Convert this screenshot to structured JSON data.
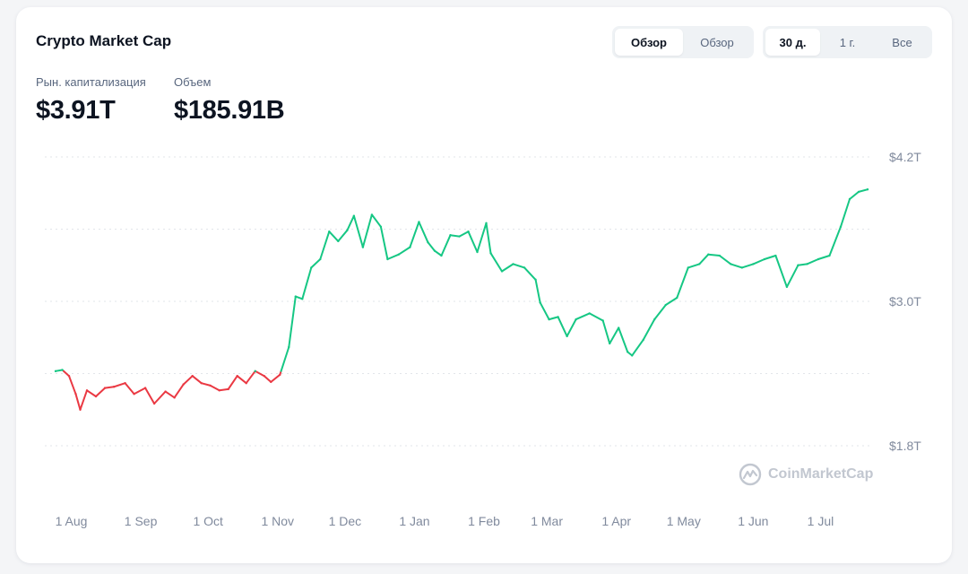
{
  "widget": {
    "title": "Crypto Market Cap",
    "view_buttons": [
      {
        "label": "Обзор",
        "active": true
      },
      {
        "label": "Обзор",
        "active": false
      }
    ],
    "range_buttons": [
      {
        "label": "30 д.",
        "active": true
      },
      {
        "label": "1 г.",
        "active": false
      },
      {
        "label": "Все",
        "active": false
      }
    ],
    "stats": [
      {
        "label": "Рын. капитализация",
        "value": "$3.91T"
      },
      {
        "label": "Объем",
        "value": "$185.91B"
      }
    ],
    "watermark": "CoinMarketCap"
  },
  "colors": {
    "up": "#16c784",
    "down": "#ea3943",
    "grid": "#e2e5ea",
    "tick": "#808a9d"
  },
  "chart_data": {
    "type": "line",
    "title": "",
    "xlabel": "",
    "ylabel": "",
    "ylim": [
      1.8,
      4.2
    ],
    "y_ticks": [
      "$4.2T",
      "$3.0T",
      "$1.8T"
    ],
    "y_tick_values": [
      4.2,
      3.0,
      1.8
    ],
    "x_ticks": [
      "1 Aug",
      "1 Sep",
      "1 Oct",
      "1 Nov",
      "1 Dec",
      "1 Jan",
      "1 Feb",
      "1 Mar",
      "1 Apr",
      "1 May",
      "1 Jun",
      "1 Jul"
    ],
    "baseline": 2.42,
    "grid": true,
    "series": [
      {
        "unit": "T USD",
        "x": [
          "2024-07-25",
          "2024-07-28",
          "2024-07-31",
          "2024-08-03",
          "2024-08-05",
          "2024-08-08",
          "2024-08-12",
          "2024-08-16",
          "2024-08-20",
          "2024-08-25",
          "2024-08-29",
          "2024-09-03",
          "2024-09-07",
          "2024-09-12",
          "2024-09-16",
          "2024-09-20",
          "2024-09-24",
          "2024-09-28",
          "2024-10-02",
          "2024-10-06",
          "2024-10-10",
          "2024-10-14",
          "2024-10-18",
          "2024-10-22",
          "2024-10-26",
          "2024-10-29",
          "2024-11-02",
          "2024-11-06",
          "2024-11-09",
          "2024-11-12",
          "2024-11-16",
          "2024-11-20",
          "2024-11-24",
          "2024-11-28",
          "2024-12-02",
          "2024-12-05",
          "2024-12-09",
          "2024-12-13",
          "2024-12-17",
          "2024-12-20",
          "2024-12-25",
          "2024-12-30",
          "2025-01-03",
          "2025-01-07",
          "2025-01-10",
          "2025-01-13",
          "2025-01-17",
          "2025-01-21",
          "2025-01-25",
          "2025-01-29",
          "2025-02-02",
          "2025-02-04",
          "2025-02-09",
          "2025-02-14",
          "2025-02-19",
          "2025-02-24",
          "2025-02-26",
          "2025-03-02",
          "2025-03-06",
          "2025-03-10",
          "2025-03-14",
          "2025-03-20",
          "2025-03-26",
          "2025-03-29",
          "2025-04-02",
          "2025-04-06",
          "2025-04-08",
          "2025-04-13",
          "2025-04-18",
          "2025-04-23",
          "2025-04-28",
          "2025-05-03",
          "2025-05-08",
          "2025-05-12",
          "2025-05-17",
          "2025-05-22",
          "2025-05-27",
          "2025-06-01",
          "2025-06-06",
          "2025-06-11",
          "2025-06-16",
          "2025-06-21",
          "2025-06-25",
          "2025-06-30",
          "2025-07-05",
          "2025-07-10",
          "2025-07-14",
          "2025-07-18",
          "2025-07-22"
        ],
        "values": [
          2.42,
          2.43,
          2.38,
          2.23,
          2.1,
          2.26,
          2.21,
          2.28,
          2.29,
          2.32,
          2.23,
          2.28,
          2.15,
          2.25,
          2.2,
          2.31,
          2.38,
          2.32,
          2.3,
          2.26,
          2.27,
          2.38,
          2.32,
          2.42,
          2.38,
          2.33,
          2.39,
          2.62,
          3.04,
          3.02,
          3.28,
          3.35,
          3.58,
          3.5,
          3.59,
          3.71,
          3.45,
          3.72,
          3.62,
          3.35,
          3.39,
          3.45,
          3.66,
          3.49,
          3.42,
          3.38,
          3.55,
          3.54,
          3.58,
          3.41,
          3.65,
          3.4,
          3.25,
          3.31,
          3.28,
          3.18,
          2.99,
          2.85,
          2.87,
          2.71,
          2.85,
          2.9,
          2.84,
          2.65,
          2.78,
          2.58,
          2.55,
          2.68,
          2.85,
          2.97,
          3.03,
          3.28,
          3.31,
          3.39,
          3.38,
          3.31,
          3.28,
          3.31,
          3.35,
          3.38,
          3.12,
          3.3,
          3.31,
          3.35,
          3.38,
          3.62,
          3.85,
          3.91,
          3.93
        ]
      }
    ]
  }
}
